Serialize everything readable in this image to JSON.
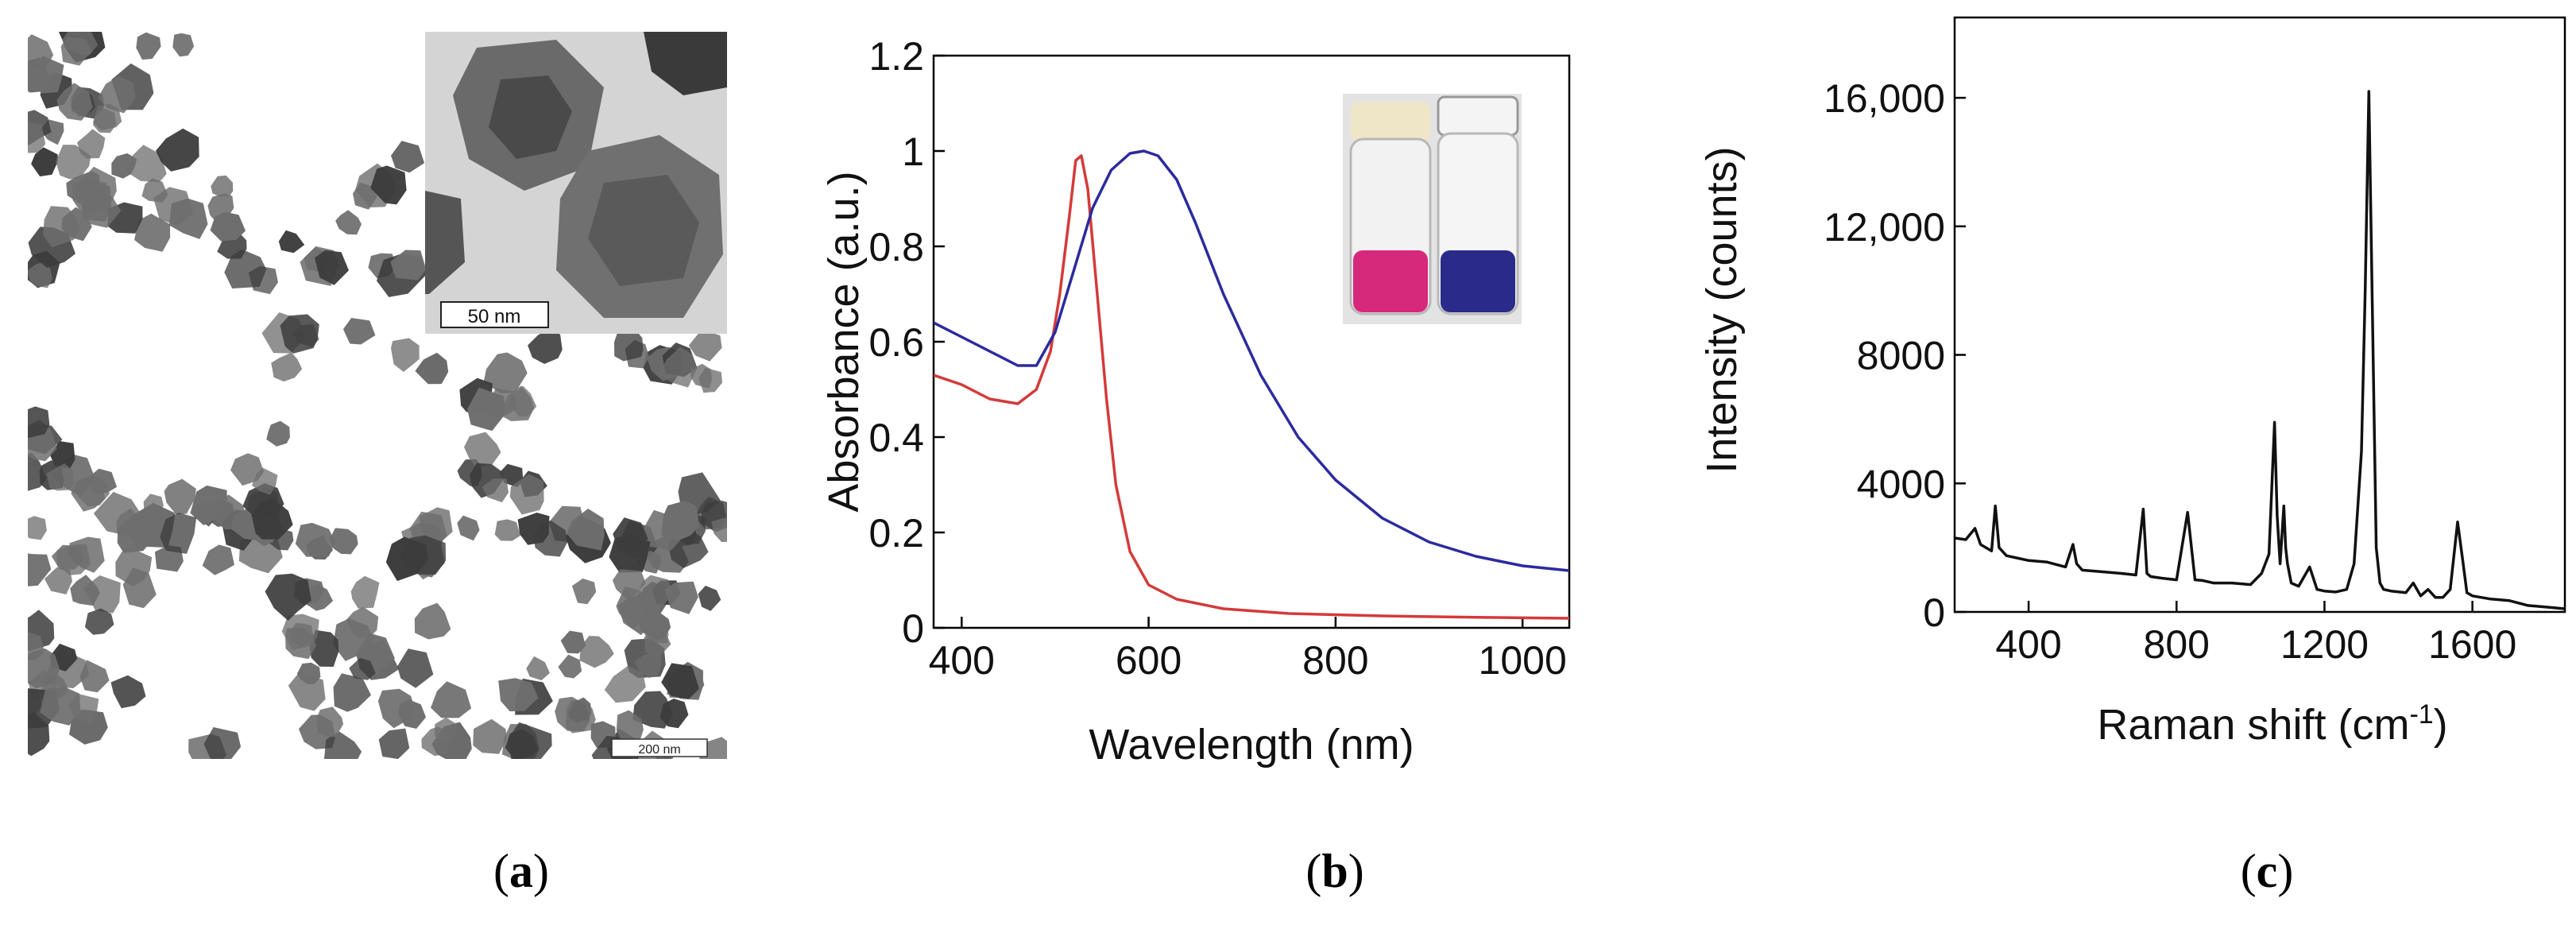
{
  "captions": {
    "open": "(",
    "close": ")",
    "a": "a",
    "b": "b",
    "c": "c"
  },
  "panel_a": {
    "inset_scale_label": "50 nm",
    "scale_label": "200 nm",
    "colors": {
      "particle": "#6e6e6e",
      "dark": "#3c3c3c",
      "background": "#ffffff"
    }
  },
  "panel_b_inset": {
    "vial_left_color": "#d6297c",
    "vial_right_color": "#2a2a8a",
    "cap_left_color": "#efe6c8",
    "cap_right_color": "#f4f4f4"
  },
  "chart_data": [
    {
      "panel": "b",
      "type": "line",
      "xlabel": "Wavelength (nm)",
      "ylabel": "Absorbance (a.u.)",
      "xlim": [
        370,
        1050
      ],
      "ylim": [
        0,
        1.2
      ],
      "xticks": [
        400,
        600,
        800,
        1000
      ],
      "yticks": [
        0,
        0.2,
        0.4,
        0.6,
        0.8,
        1,
        1.2
      ],
      "yticklabels": [
        "0",
        "0.2",
        "0.4",
        "0.6",
        "0.8",
        "1",
        "1.2"
      ],
      "series": [
        {
          "name": "red spectrum",
          "color": "#d43a3a",
          "x": [
            370,
            400,
            430,
            460,
            480,
            495,
            505,
            515,
            522,
            528,
            535,
            545,
            555,
            565,
            580,
            600,
            630,
            680,
            750,
            850,
            950,
            1050
          ],
          "y": [
            0.53,
            0.51,
            0.48,
            0.47,
            0.5,
            0.58,
            0.7,
            0.86,
            0.98,
            0.99,
            0.92,
            0.7,
            0.48,
            0.3,
            0.16,
            0.09,
            0.06,
            0.04,
            0.03,
            0.025,
            0.022,
            0.02
          ]
        },
        {
          "name": "blue spectrum",
          "color": "#2b2b9e",
          "x": [
            370,
            400,
            430,
            460,
            480,
            500,
            520,
            540,
            560,
            580,
            595,
            610,
            630,
            650,
            680,
            720,
            760,
            800,
            850,
            900,
            950,
            1000,
            1050
          ],
          "y": [
            0.64,
            0.61,
            0.58,
            0.55,
            0.55,
            0.62,
            0.75,
            0.88,
            0.96,
            0.995,
            1.0,
            0.99,
            0.94,
            0.85,
            0.7,
            0.53,
            0.4,
            0.31,
            0.23,
            0.18,
            0.15,
            0.13,
            0.12
          ]
        }
      ]
    },
    {
      "panel": "c",
      "type": "line",
      "xlabel": "Raman shift (cm",
      "xlabel_sup": "-1",
      "xlabel_close": ")",
      "ylabel": "Intensity (counts)",
      "xlim": [
        200,
        1850
      ],
      "ylim": [
        0,
        18500
      ],
      "xticks": [
        400,
        800,
        1200,
        1600
      ],
      "yticks": [
        0,
        4000,
        8000,
        12000,
        16000
      ],
      "yticklabels": [
        "0",
        "4000",
        "8000",
        "12,000",
        "16,000"
      ],
      "series": [
        {
          "name": "Raman spectrum",
          "color": "#111111",
          "x": [
            200,
            230,
            255,
            270,
            300,
            310,
            320,
            340,
            400,
            450,
            500,
            520,
            530,
            545,
            600,
            650,
            690,
            710,
            720,
            730,
            760,
            800,
            830,
            850,
            870,
            900,
            950,
            1000,
            1030,
            1050,
            1065,
            1072,
            1080,
            1090,
            1095,
            1100,
            1110,
            1130,
            1160,
            1180,
            1200,
            1230,
            1260,
            1280,
            1300,
            1310,
            1320,
            1330,
            1340,
            1350,
            1360,
            1380,
            1420,
            1440,
            1460,
            1480,
            1500,
            1520,
            1540,
            1560,
            1575,
            1585,
            1600,
            1650,
            1700,
            1750,
            1800,
            1850
          ],
          "y": [
            2300,
            2250,
            2600,
            2100,
            1900,
            3300,
            2000,
            1750,
            1600,
            1550,
            1400,
            2100,
            1500,
            1300,
            1250,
            1200,
            1150,
            3200,
            1200,
            1100,
            1050,
            1000,
            3100,
            1000,
            980,
            900,
            900,
            850,
            1200,
            1800,
            5900,
            3000,
            1500,
            3300,
            2000,
            1500,
            900,
            800,
            1400,
            700,
            650,
            620,
            700,
            1500,
            5000,
            10000,
            16200,
            9000,
            2000,
            900,
            700,
            650,
            600,
            900,
            500,
            700,
            450,
            450,
            700,
            2800,
            1500,
            600,
            500,
            400,
            350,
            200,
            150,
            100
          ]
        }
      ]
    }
  ]
}
